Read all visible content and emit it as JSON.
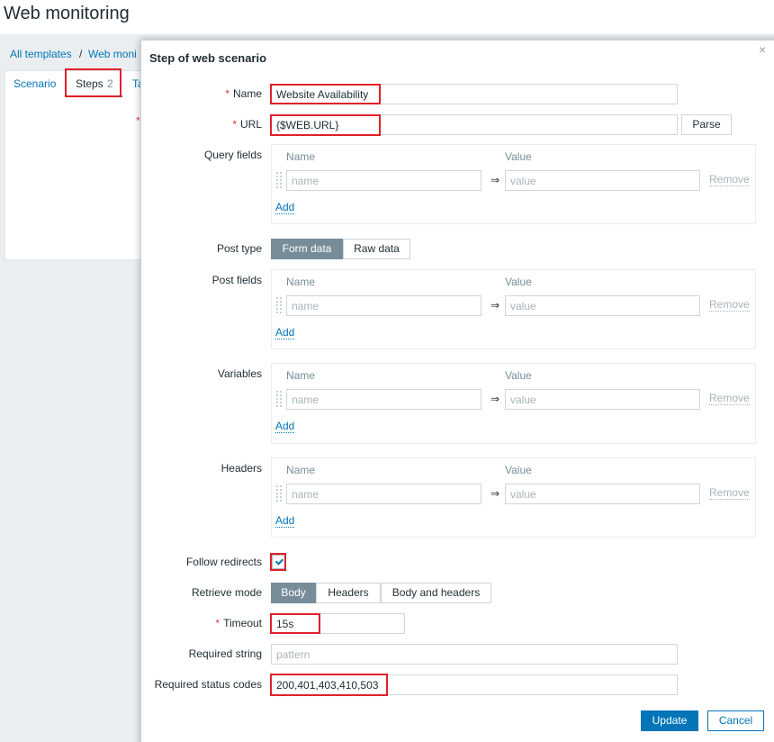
{
  "header": {
    "title": "Web monitoring"
  },
  "breadcrumbs": {
    "items": [
      "All templates",
      "Web moni"
    ],
    "separator": "/"
  },
  "tabs": [
    {
      "label": "Scenario"
    },
    {
      "label": "Steps",
      "count": 2
    },
    {
      "label": "Ta"
    }
  ],
  "panel": {
    "required_mark": "*"
  },
  "dialog": {
    "title": "Step of web scenario",
    "close": "×",
    "required_mark": "*",
    "name": {
      "label": "Name",
      "value": "Website Availability"
    },
    "url": {
      "label": "URL",
      "value": "{$WEB.URL}",
      "button": "Parse"
    },
    "query_fields": {
      "label": "Query fields",
      "name_header": "Name",
      "value_header": "Value",
      "name_placeholder": "name",
      "arrow": "⇒",
      "value_placeholder": "value",
      "remove": "Remove",
      "add": "Add"
    },
    "post_type": {
      "label": "Post type",
      "options": [
        "Form data",
        "Raw data"
      ],
      "selected": 0
    },
    "post_fields": {
      "label": "Post fields",
      "name_header": "Name",
      "value_header": "Value",
      "name_placeholder": "name",
      "arrow": "⇒",
      "value_placeholder": "value",
      "remove": "Remove",
      "add": "Add"
    },
    "variables": {
      "label": "Variables",
      "name_header": "Name",
      "value_header": "Value",
      "name_placeholder": "name",
      "arrow": "⇒",
      "value_placeholder": "value",
      "remove": "Remove",
      "add": "Add"
    },
    "headers": {
      "label": "Headers",
      "name_header": "Name",
      "value_header": "Value",
      "name_placeholder": "name",
      "arrow": "⇒",
      "value_placeholder": "value",
      "remove": "Remove",
      "add": "Add"
    },
    "follow_redirects": {
      "label": "Follow redirects",
      "checked": true
    },
    "retrieve_mode": {
      "label": "Retrieve mode",
      "options": [
        "Body",
        "Headers",
        "Body and headers"
      ],
      "selected": 0
    },
    "timeout": {
      "label": "Timeout",
      "value": "15s"
    },
    "required_string": {
      "label": "Required string",
      "placeholder": "pattern"
    },
    "status_codes": {
      "label": "Required status codes",
      "value": "200,401,403,410,503"
    },
    "buttons": {
      "update": "Update",
      "cancel": "Cancel"
    }
  }
}
